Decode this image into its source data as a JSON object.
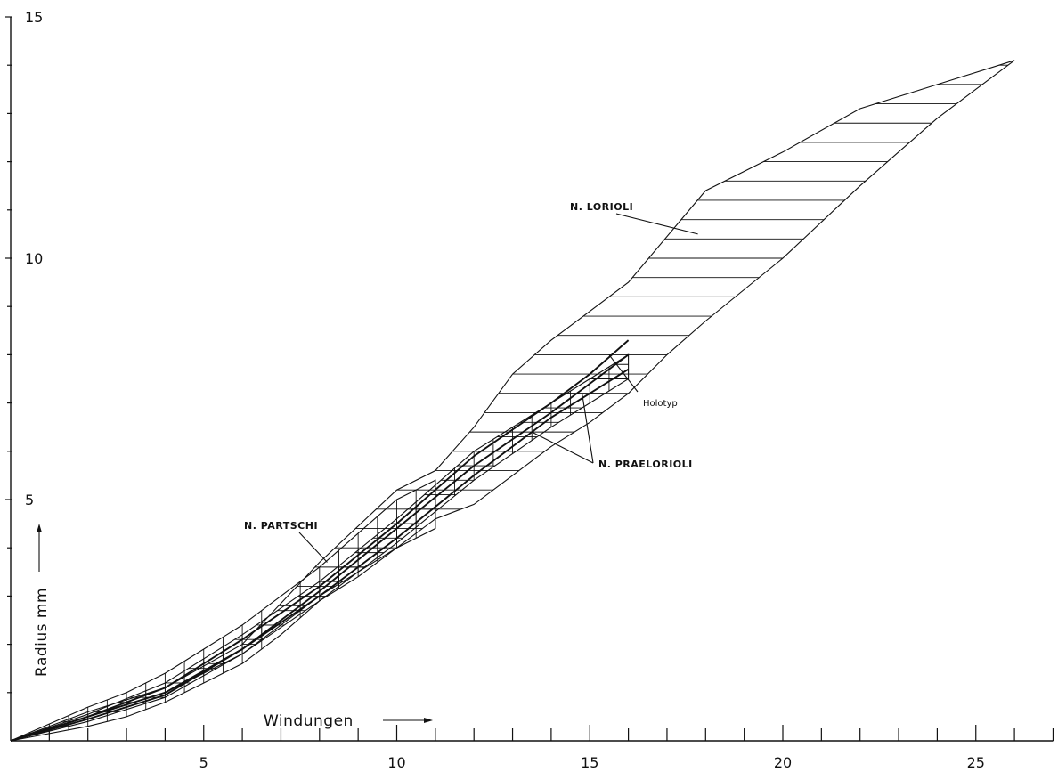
{
  "chart_data": {
    "type": "line",
    "xlabel": "Windungen",
    "ylabel": "Radius mm",
    "xlim": [
      0,
      27
    ],
    "ylim": [
      0,
      15
    ],
    "x_ticks": [
      5,
      10,
      15,
      20,
      25
    ],
    "y_ticks": [
      5,
      10,
      15
    ],
    "x_minor_step": 1,
    "y_minor_step": 1,
    "grid": false,
    "series": [
      {
        "name": "N. LORIOLI",
        "kind": "band",
        "hatch": "horizontal",
        "upper": [
          [
            0,
            0
          ],
          [
            2,
            0.6
          ],
          [
            4,
            1.1
          ],
          [
            6,
            2.0
          ],
          [
            8,
            3.7
          ],
          [
            10,
            5.2
          ],
          [
            11,
            5.6
          ],
          [
            12,
            6.5
          ],
          [
            13,
            7.6
          ],
          [
            14,
            8.3
          ],
          [
            16,
            9.5
          ],
          [
            18,
            11.4
          ],
          [
            20,
            12.2
          ],
          [
            22,
            13.1
          ],
          [
            24,
            13.6
          ],
          [
            26,
            14.1
          ]
        ],
        "lower": [
          [
            0,
            0
          ],
          [
            2,
            0.5
          ],
          [
            4,
            1.0
          ],
          [
            6,
            1.8
          ],
          [
            8,
            3.0
          ],
          [
            10,
            4.0
          ],
          [
            11,
            4.6
          ],
          [
            12,
            4.9
          ],
          [
            13,
            5.5
          ],
          [
            14,
            6.1
          ],
          [
            15,
            6.6
          ],
          [
            16,
            7.2
          ],
          [
            17,
            8.0
          ],
          [
            18,
            8.7
          ],
          [
            20,
            10.0
          ],
          [
            22,
            11.5
          ],
          [
            24,
            12.9
          ],
          [
            26,
            14.1
          ]
        ]
      },
      {
        "name": "N. PARTSCHI",
        "kind": "band",
        "hatch": "vertical",
        "upper": [
          [
            0,
            0
          ],
          [
            2,
            0.7
          ],
          [
            3,
            1.0
          ],
          [
            4,
            1.4
          ],
          [
            5,
            1.9
          ],
          [
            6,
            2.4
          ],
          [
            7,
            3.0
          ],
          [
            8,
            3.6
          ],
          [
            9,
            4.3
          ],
          [
            10,
            5.0
          ],
          [
            11,
            5.4
          ]
        ],
        "lower": [
          [
            0,
            0
          ],
          [
            2,
            0.3
          ],
          [
            3,
            0.5
          ],
          [
            4,
            0.8
          ],
          [
            5,
            1.2
          ],
          [
            6,
            1.6
          ],
          [
            7,
            2.2
          ],
          [
            8,
            2.9
          ],
          [
            9,
            3.4
          ],
          [
            10,
            4.0
          ],
          [
            11,
            4.4
          ]
        ]
      },
      {
        "name": "N. PRAELORIOLI",
        "kind": "band",
        "hatch": "crosshatch",
        "upper": [
          [
            0,
            0
          ],
          [
            2,
            0.55
          ],
          [
            4,
            1.2
          ],
          [
            6,
            2.2
          ],
          [
            8,
            3.3
          ],
          [
            10,
            4.6
          ],
          [
            12,
            6.0
          ],
          [
            14,
            7.0
          ],
          [
            15,
            7.5
          ],
          [
            16,
            8.0
          ]
        ],
        "lower": [
          [
            0,
            0
          ],
          [
            2,
            0.4
          ],
          [
            4,
            0.9
          ],
          [
            6,
            1.8
          ],
          [
            8,
            2.9
          ],
          [
            10,
            4.1
          ],
          [
            12,
            5.4
          ],
          [
            14,
            6.5
          ],
          [
            15,
            7.0
          ],
          [
            16,
            7.5
          ]
        ]
      },
      {
        "name": "N. PRAELORIOLI",
        "kind": "line",
        "points": [
          [
            0,
            0
          ],
          [
            2,
            0.5
          ],
          [
            4,
            1.1
          ],
          [
            6,
            2.1
          ],
          [
            8,
            3.2
          ],
          [
            10,
            4.5
          ],
          [
            12,
            5.9
          ],
          [
            14,
            7.0
          ],
          [
            15,
            7.6
          ],
          [
            16,
            8.3
          ]
        ]
      },
      {
        "name": "Holotyp",
        "kind": "line",
        "points": [
          [
            0,
            0
          ],
          [
            2,
            0.5
          ],
          [
            4,
            1.0
          ],
          [
            6,
            1.9
          ],
          [
            8,
            3.1
          ],
          [
            10,
            4.4
          ],
          [
            12,
            5.7
          ],
          [
            14,
            6.8
          ],
          [
            15,
            7.4
          ],
          [
            16,
            8.0
          ]
        ]
      },
      {
        "name": "N. PRAELORIOLI",
        "kind": "line",
        "points": [
          [
            0,
            0
          ],
          [
            2,
            0.45
          ],
          [
            4,
            0.95
          ],
          [
            6,
            1.9
          ],
          [
            8,
            3.0
          ],
          [
            10,
            4.2
          ],
          [
            12,
            5.5
          ],
          [
            14,
            6.7
          ],
          [
            15,
            7.2
          ],
          [
            16,
            7.7
          ]
        ]
      }
    ],
    "annotations": [
      {
        "text": "N. LORIOLI",
        "points_to": [
          17.8,
          10.5
        ]
      },
      {
        "text": "N. PARTSCHI",
        "points_to": [
          8.2,
          3.7
        ]
      },
      {
        "text": "N. PRAELORIOLI",
        "points_to": [
          13.5,
          6.4
        ]
      },
      {
        "text": "Holotyp",
        "points_to": [
          15.5,
          8.0
        ]
      }
    ]
  }
}
